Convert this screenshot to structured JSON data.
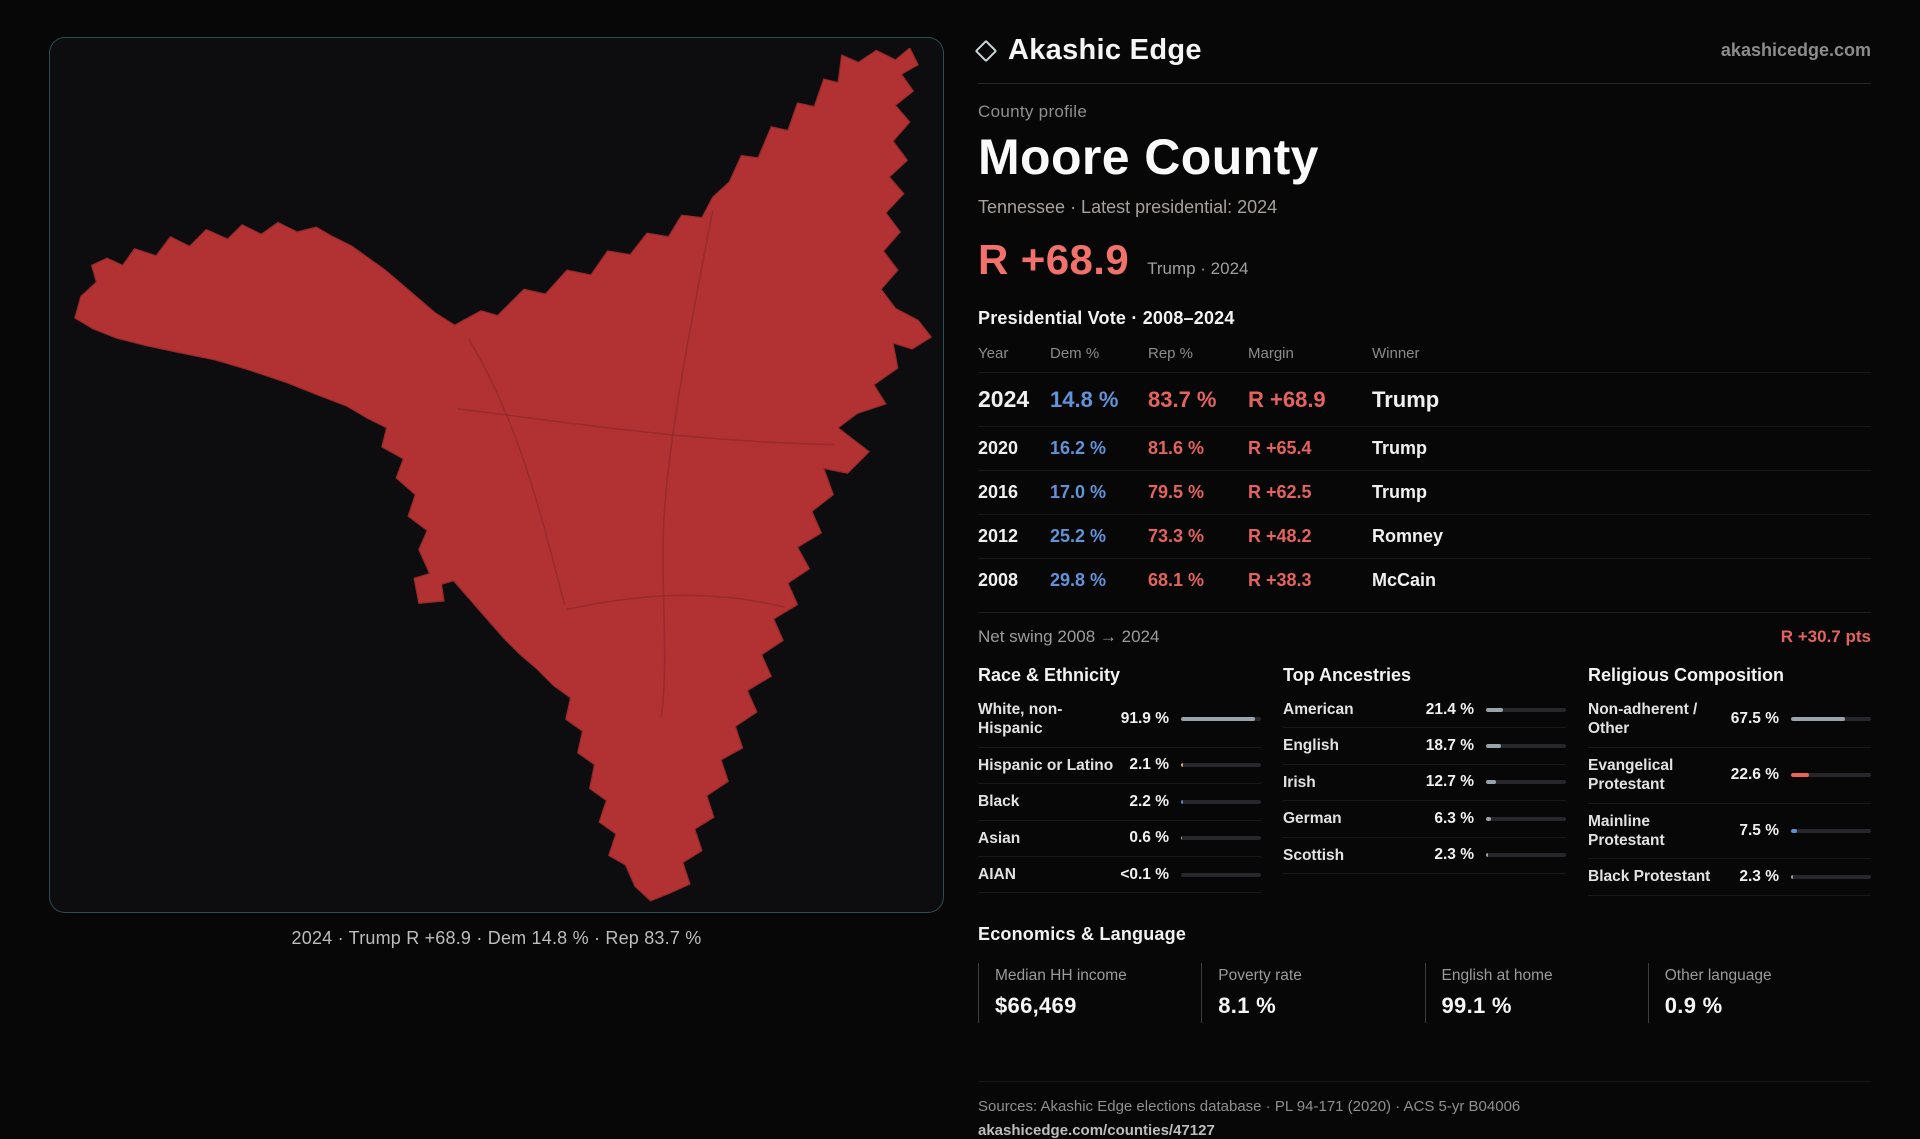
{
  "brand": {
    "name": "Akashic Edge",
    "site": "akashicedge.com"
  },
  "profile": {
    "kicker": "County profile",
    "title": "Moore County",
    "subtitle": "Tennessee · Latest presidential: 2024",
    "headline_margin": "R +68.9",
    "headline_context": "Trump · 2024"
  },
  "map": {
    "caption": "2024 · Trump R +68.9 · Dem 14.8 % · Rep 83.7 %",
    "fill_color": "#b23234",
    "panel_border_color": "#2e6a72"
  },
  "vote_table": {
    "title": "Presidential Vote · 2008–2024",
    "columns": [
      "Year",
      "Dem %",
      "Rep %",
      "Margin",
      "Winner"
    ],
    "rows": [
      {
        "year": "2024",
        "dem": "14.8 %",
        "rep": "83.7 %",
        "margin": "R +68.9",
        "winner": "Trump",
        "emphasis": true
      },
      {
        "year": "2020",
        "dem": "16.2 %",
        "rep": "81.6 %",
        "margin": "R +65.4",
        "winner": "Trump",
        "emphasis": false
      },
      {
        "year": "2016",
        "dem": "17.0 %",
        "rep": "79.5 %",
        "margin": "R +62.5",
        "winner": "Trump",
        "emphasis": false
      },
      {
        "year": "2012",
        "dem": "25.2 %",
        "rep": "73.3 %",
        "margin": "R +48.2",
        "winner": "Romney",
        "emphasis": false
      },
      {
        "year": "2008",
        "dem": "29.8 %",
        "rep": "68.1 %",
        "margin": "R +38.3",
        "winner": "McCain",
        "emphasis": false
      }
    ],
    "net_swing_label": "Net swing 2008 → 2024",
    "net_swing_value": "R +30.7 pts"
  },
  "demographics": [
    {
      "title": "Race & Ethnicity",
      "rows": [
        {
          "label": "White, non-Hispanic",
          "value": "91.9 %",
          "pct": 91.9,
          "color": "#9aa3ab"
        },
        {
          "label": "Hispanic or Latino",
          "value": "2.1 %",
          "pct": 2.1,
          "color": "#d8b44a"
        },
        {
          "label": "Black",
          "value": "2.2 %",
          "pct": 2.2,
          "color": "#6f7bd8"
        },
        {
          "label": "Asian",
          "value": "0.6 %",
          "pct": 0.6,
          "color": "#9aa3ab"
        },
        {
          "label": "AIAN",
          "value": "<0.1 %",
          "pct": 0,
          "color": "#9aa3ab"
        }
      ]
    },
    {
      "title": "Top Ancestries",
      "rows": [
        {
          "label": "American",
          "value": "21.4 %",
          "pct": 21.4,
          "color": "#9aa3ab"
        },
        {
          "label": "English",
          "value": "18.7 %",
          "pct": 18.7,
          "color": "#9aa3ab"
        },
        {
          "label": "Irish",
          "value": "12.7 %",
          "pct": 12.7,
          "color": "#9aa3ab"
        },
        {
          "label": "German",
          "value": "6.3 %",
          "pct": 6.3,
          "color": "#9aa3ab"
        },
        {
          "label": "Scottish",
          "value": "2.3 %",
          "pct": 2.3,
          "color": "#9aa3ab"
        }
      ]
    },
    {
      "title": "Religious Composition",
      "rows": [
        {
          "label": "Non-adherent / Other",
          "value": "67.5 %",
          "pct": 67.5,
          "color": "#9aa3ab"
        },
        {
          "label": "Evangelical Protestant",
          "value": "22.6 %",
          "pct": 22.6,
          "color": "#e8635e"
        },
        {
          "label": "Mainline Protestant",
          "value": "7.5 %",
          "pct": 7.5,
          "color": "#5d8fd6"
        },
        {
          "label": "Black Protestant",
          "value": "2.3 %",
          "pct": 2.3,
          "color": "#9aa3ab"
        }
      ]
    }
  ],
  "economics": {
    "title": "Economics & Language",
    "stats": [
      {
        "label": "Median HH income",
        "value": "$66,469"
      },
      {
        "label": "Poverty rate",
        "value": "8.1 %"
      },
      {
        "label": "English at home",
        "value": "99.1 %"
      },
      {
        "label": "Other language",
        "value": "0.9 %"
      }
    ]
  },
  "footer": {
    "sources": "Sources: Akashic Edge elections database · PL 94-171 (2020) · ACS 5-yr B04006",
    "permalink": "akashicedge.com/counties/47127"
  },
  "colors": {
    "dem_blue": "#6293d8",
    "rep_red": "#e4635e",
    "headline_red": "#f2716b"
  }
}
